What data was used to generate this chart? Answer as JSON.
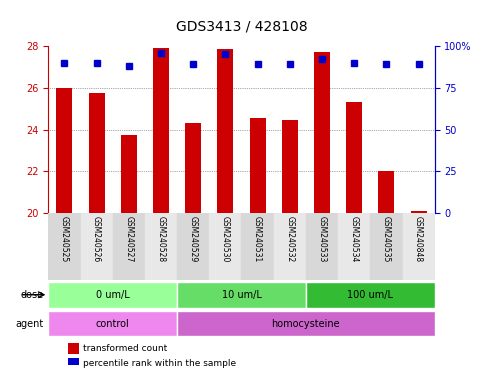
{
  "title": "GDS3413 / 428108",
  "samples": [
    "GSM240525",
    "GSM240526",
    "GSM240527",
    "GSM240528",
    "GSM240529",
    "GSM240530",
    "GSM240531",
    "GSM240532",
    "GSM240533",
    "GSM240534",
    "GSM240535",
    "GSM240848"
  ],
  "bar_values": [
    26.0,
    25.75,
    23.75,
    27.9,
    24.3,
    27.85,
    24.55,
    24.45,
    27.7,
    25.3,
    22.0,
    20.1
  ],
  "percentile_values": [
    90,
    90,
    88,
    96,
    89,
    95,
    89,
    89,
    92,
    90,
    89,
    89
  ],
  "ylim": [
    20,
    28
  ],
  "yticks": [
    20,
    22,
    24,
    26,
    28
  ],
  "y2lim": [
    0,
    100
  ],
  "y2ticks": [
    0,
    25,
    50,
    75,
    100
  ],
  "bar_color": "#cc0000",
  "dot_color": "#0000cc",
  "grid_color": "#888888",
  "bg_color": "#f0f0f0",
  "dose_groups": [
    {
      "label": "0 um/L",
      "start": 0,
      "end": 4,
      "color": "#99ff99"
    },
    {
      "label": "10 um/L",
      "start": 4,
      "end": 8,
      "color": "#66dd66"
    },
    {
      "label": "100 um/L",
      "start": 8,
      "end": 12,
      "color": "#33bb33"
    }
  ],
  "agent_groups": [
    {
      "label": "control",
      "start": 0,
      "end": 4,
      "color": "#ee88ee"
    },
    {
      "label": "homocysteine",
      "start": 4,
      "end": 12,
      "color": "#cc66cc"
    }
  ],
  "legend_items": [
    {
      "label": "transformed count",
      "color": "#cc0000",
      "marker": "s"
    },
    {
      "label": "percentile rank within the sample",
      "color": "#0000cc",
      "marker": "s"
    }
  ]
}
